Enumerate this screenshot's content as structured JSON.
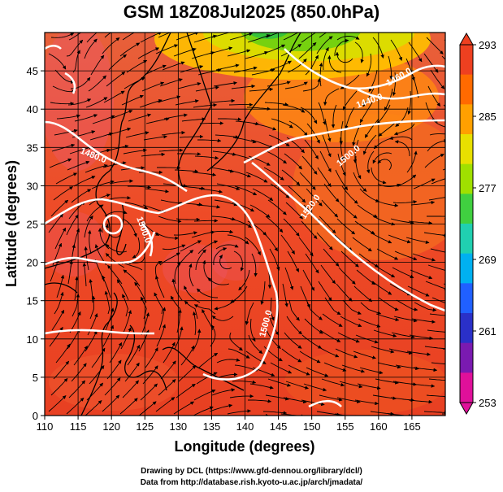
{
  "title": "GSM 18Z08Jul2025 (850.0hPa)",
  "axes": {
    "xlabel": "Longitude (degrees)",
    "ylabel": "Latitude  (degrees)",
    "xticks": [
      "110",
      "115",
      "120",
      "125",
      "130",
      "135",
      "140",
      "145",
      "150",
      "155",
      "160",
      "165"
    ],
    "yticks": [
      "0",
      "5",
      "10",
      "15",
      "20",
      "25",
      "30",
      "35",
      "40",
      "45"
    ],
    "xrange": [
      110,
      170
    ],
    "yrange": [
      0,
      50
    ]
  },
  "colorbar": {
    "labels": [
      "293",
      "285",
      "277",
      "269",
      "261",
      "253"
    ],
    "min": 253,
    "max": 293,
    "colors": [
      "#e0109a",
      "#7a1ab0",
      "#2a30c8",
      "#2060ff",
      "#00b0f0",
      "#20d0b0",
      "#40d040",
      "#a0e000",
      "#e8e000",
      "#ffa000",
      "#ff6a00",
      "#ee4020"
    ]
  },
  "contours": [
    {
      "label": "1480.0"
    },
    {
      "label": "1500.0"
    },
    {
      "label": "1520.0"
    },
    {
      "label": "1440.0"
    },
    {
      "label": "1460.0"
    },
    {
      "label": "1500.0"
    }
  ],
  "credits": [
    "Drawing by DCL (https://www.gfd-dennou.org/library/dcl/)",
    "Data from http://database.rish.kyoto-u.ac.jp/arch/jmadata/"
  ]
}
